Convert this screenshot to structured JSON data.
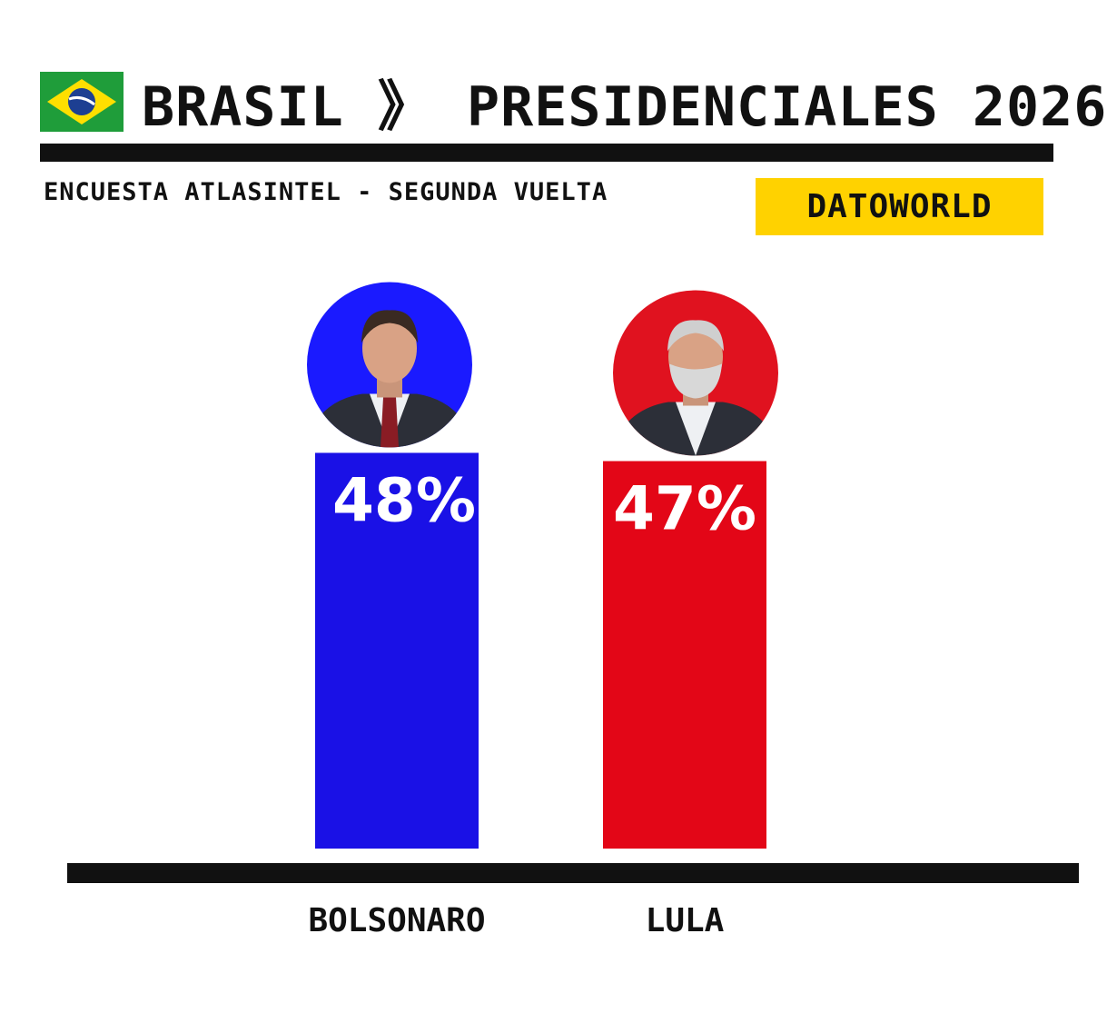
{
  "header": {
    "country": "BRASIL",
    "separator": "》",
    "title": "PRESIDENCIALES 2026",
    "subtitle": "ENCUESTA ATLASINTEL - SEGUNDA VUELTA",
    "brand": "DATOWORLD",
    "brand_color": "#ffd200"
  },
  "chart_data": {
    "type": "bar",
    "categories": [
      "BOLSONARO",
      "LULA"
    ],
    "values": [
      48,
      47
    ],
    "value_labels": [
      "48%",
      "47%"
    ],
    "colors": [
      "#1a11e6",
      "#e30617"
    ],
    "portrait_backgrounds": [
      "#1a1aff",
      "#e0121f"
    ],
    "title": "",
    "xlabel": "",
    "ylabel": "",
    "ylim": [
      0,
      54
    ],
    "grid": false,
    "legend": "none"
  }
}
